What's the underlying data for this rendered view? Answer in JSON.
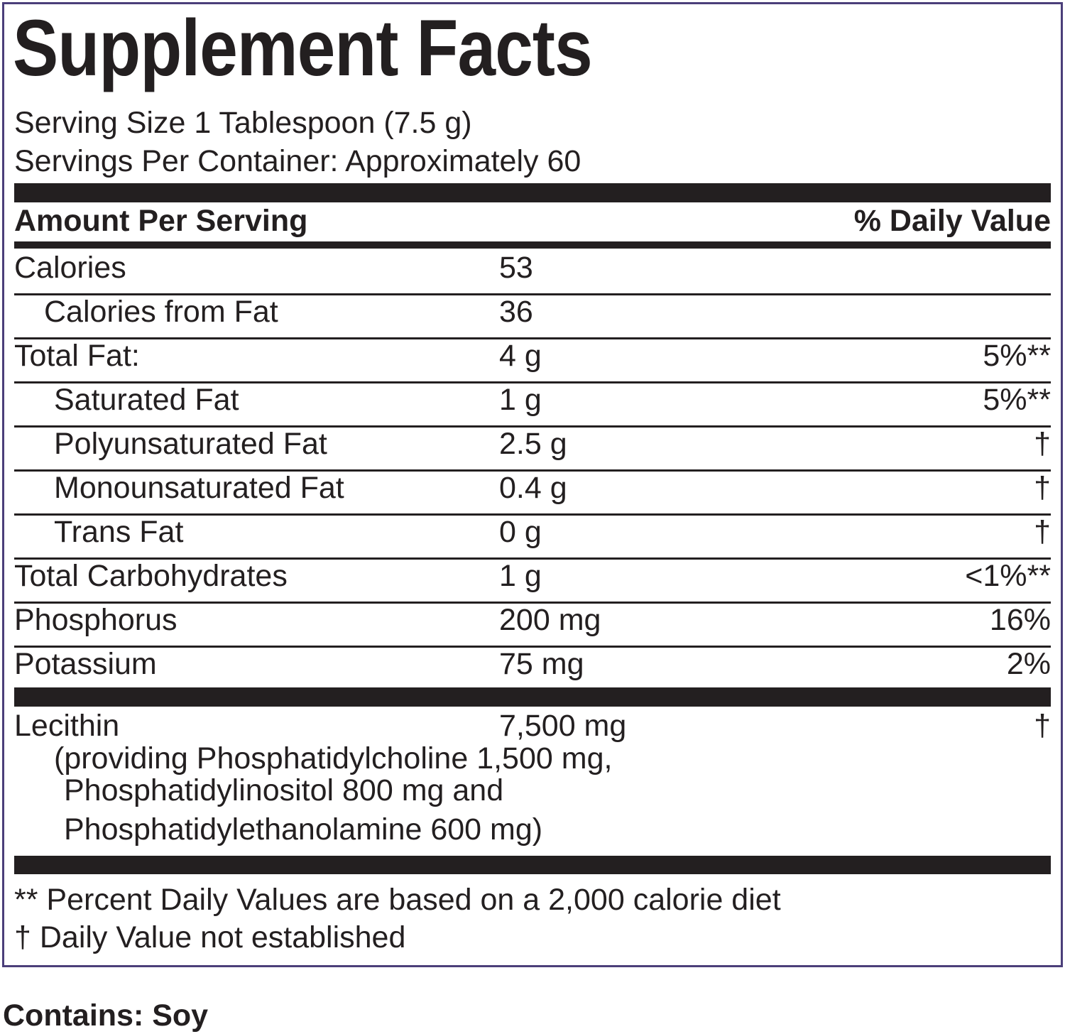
{
  "title": "Supplement Facts",
  "serving_size": "Serving Size 1 Tablespoon (7.5 g)",
  "servings_per_container": "Servings Per Container: Approximately 60",
  "header": {
    "amount": "Amount Per Serving",
    "daily_value": "% Daily Value"
  },
  "rows": [
    {
      "name": "Calories",
      "amount": "53"
    },
    {
      "name": "Calories from Fat",
      "amount": "36"
    },
    {
      "name": "Total Fat:",
      "amount": "4 g",
      "daily_value": "5%**"
    },
    {
      "name": "Saturated Fat",
      "amount": "1 g",
      "daily_value": "5%**"
    },
    {
      "name": "Polyunsaturated Fat",
      "amount": "2.5 g",
      "daily_value": "†"
    },
    {
      "name": "Monounsaturated Fat",
      "amount": "0.4 g",
      "daily_value": "†"
    },
    {
      "name": "Trans Fat",
      "amount": "0 g",
      "daily_value": "†"
    },
    {
      "name": "Total Carbohydrates",
      "amount": "1 g",
      "daily_value": "<1%**"
    },
    {
      "name": "Phosphorus",
      "amount": "200 mg",
      "daily_value": "16%"
    },
    {
      "name": "Potassium",
      "amount": "75 mg",
      "daily_value": "2%"
    }
  ],
  "lecithin": {
    "name": "Lecithin",
    "amount": "7,500 mg",
    "daily_value": "†",
    "details": [
      "(providing Phosphatidylcholine 1,500 mg,",
      "Phosphatidylinositol 800 mg and",
      "Phosphatidylethanolamine 600 mg)"
    ]
  },
  "footnotes": [
    "** Percent Daily Values are based on a 2,000 calorie diet",
    "† Daily Value not established"
  ],
  "contains": "Contains: Soy"
}
